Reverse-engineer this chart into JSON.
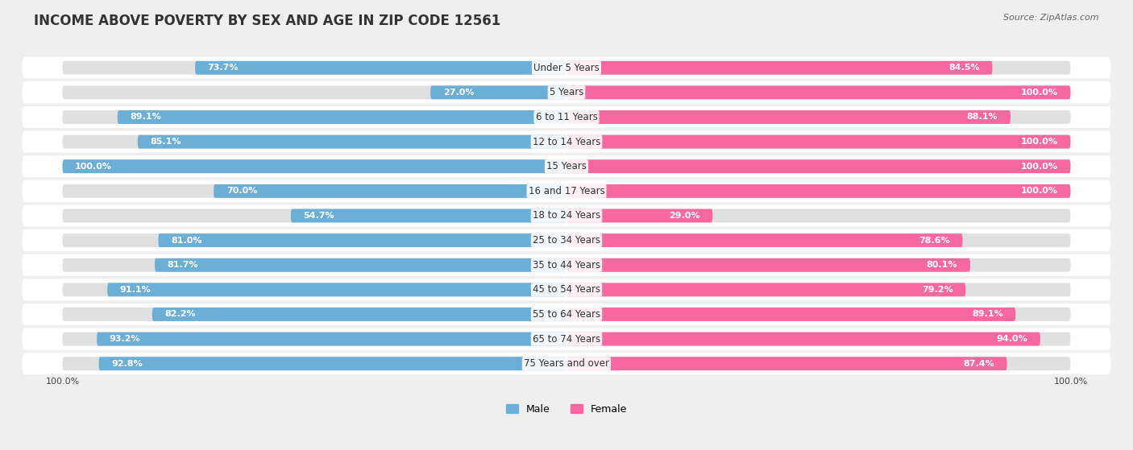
{
  "title": "INCOME ABOVE POVERTY BY SEX AND AGE IN ZIP CODE 12561",
  "source": "Source: ZipAtlas.com",
  "categories": [
    "Under 5 Years",
    "5 Years",
    "6 to 11 Years",
    "12 to 14 Years",
    "15 Years",
    "16 and 17 Years",
    "18 to 24 Years",
    "25 to 34 Years",
    "35 to 44 Years",
    "45 to 54 Years",
    "55 to 64 Years",
    "65 to 74 Years",
    "75 Years and over"
  ],
  "male_values": [
    73.7,
    27.0,
    89.1,
    85.1,
    100.0,
    70.0,
    54.7,
    81.0,
    81.7,
    91.1,
    82.2,
    93.2,
    92.8
  ],
  "female_values": [
    84.5,
    100.0,
    88.1,
    100.0,
    100.0,
    100.0,
    29.0,
    78.6,
    80.1,
    79.2,
    89.1,
    94.0,
    87.4
  ],
  "male_color": "#6baed6",
  "female_color": "#f768a1",
  "female_color_light": "#f9c0d4",
  "bg_color": "#efefef",
  "bar_bg_color": "#e0e0e0",
  "row_bg_color": "#ffffff",
  "title_fontsize": 12,
  "label_fontsize": 8.5,
  "value_fontsize": 8.0,
  "legend_fontsize": 9,
  "source_fontsize": 8,
  "bar_height": 0.55,
  "rounding_size": 0.275,
  "row_rounding": 0.44,
  "male_threshold": 15,
  "female_threshold": 15
}
